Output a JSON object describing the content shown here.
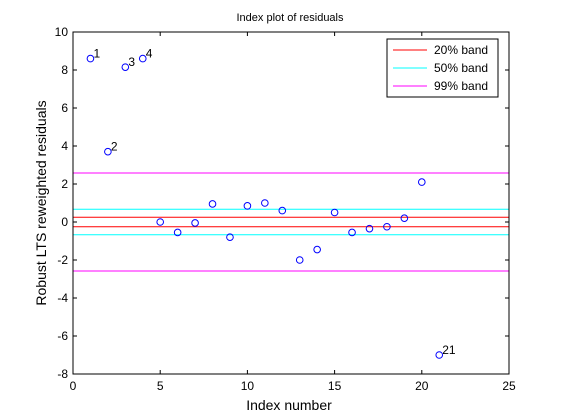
{
  "chart_data": {
    "type": "scatter",
    "title": "Index plot of residuals",
    "xlabel": "Index number",
    "ylabel": "Robust LTS reweighted residuals",
    "xlim": [
      0,
      25
    ],
    "ylim": [
      -8,
      10
    ],
    "xticks": [
      0,
      5,
      10,
      15,
      20,
      25
    ],
    "yticks": [
      -8,
      -6,
      -4,
      -2,
      0,
      2,
      4,
      6,
      8,
      10
    ],
    "grid": false,
    "legend_position": "top-right",
    "points": {
      "marker": "circle",
      "color": "#0000ff",
      "x": [
        1,
        2,
        3,
        4,
        5,
        6,
        7,
        8,
        9,
        10,
        11,
        12,
        13,
        14,
        15,
        16,
        17,
        18,
        19,
        20,
        21
      ],
      "y": [
        8.6,
        3.7,
        8.15,
        8.6,
        0.0,
        -0.55,
        -0.05,
        0.95,
        -0.8,
        0.85,
        1.0,
        0.6,
        -2.0,
        -1.45,
        0.5,
        -0.55,
        -0.35,
        -0.25,
        0.2,
        2.1,
        -7.0
      ]
    },
    "point_labels": [
      {
        "index": 1,
        "text": "1"
      },
      {
        "index": 2,
        "text": "2"
      },
      {
        "index": 3,
        "text": "3"
      },
      {
        "index": 4,
        "text": "4"
      },
      {
        "index": 21,
        "text": "21"
      }
    ],
    "bands": [
      {
        "name": "20% band",
        "color": "#ff0000",
        "upper": 0.25,
        "lower": -0.25
      },
      {
        "name": "50% band",
        "color": "#00ffff",
        "upper": 0.67,
        "lower": -0.67
      },
      {
        "name": "99% band",
        "color": "#ff00ff",
        "upper": 2.58,
        "lower": -2.58
      }
    ]
  }
}
